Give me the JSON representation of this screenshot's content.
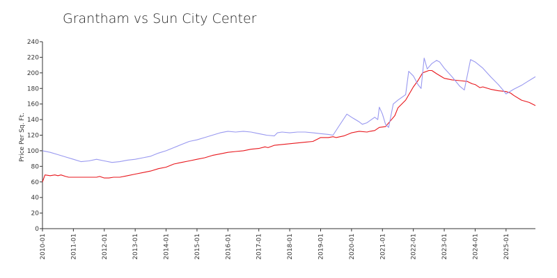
{
  "chart_data": {
    "type": "line",
    "title": "Grantham vs Sun City Center",
    "xlabel": "",
    "ylabel": "Price Per Sq. Ft.",
    "ylim": [
      0,
      240
    ],
    "yticks": [
      0,
      20,
      40,
      60,
      80,
      100,
      120,
      140,
      160,
      180,
      200,
      220,
      240
    ],
    "xlim": [
      2010.0,
      2025.95
    ],
    "xticks": [
      "2010-01",
      "2011-01",
      "2012-01",
      "2013-01",
      "2014-01",
      "2015-01",
      "2016-01",
      "2017-01",
      "2018-01",
      "2019-01",
      "2020-01",
      "2021-01",
      "2022-01",
      "2023-01",
      "2024-01",
      "2025-01"
    ],
    "grid": false,
    "legend": "none",
    "series": [
      {
        "name": "",
        "color": "#e8151b",
        "points": [
          [
            2010.0,
            60
          ],
          [
            2010.08,
            69
          ],
          [
            2010.25,
            68
          ],
          [
            2010.4,
            69
          ],
          [
            2010.5,
            68
          ],
          [
            2010.6,
            69
          ],
          [
            2010.75,
            67
          ],
          [
            2010.85,
            66
          ],
          [
            2011.0,
            66
          ],
          [
            2011.25,
            66
          ],
          [
            2011.5,
            66
          ],
          [
            2011.75,
            66
          ],
          [
            2011.85,
            67
          ],
          [
            2012.0,
            65
          ],
          [
            2012.15,
            65
          ],
          [
            2012.3,
            66
          ],
          [
            2012.5,
            66
          ],
          [
            2012.75,
            68
          ],
          [
            2013.0,
            70
          ],
          [
            2013.25,
            72
          ],
          [
            2013.5,
            74
          ],
          [
            2013.75,
            77
          ],
          [
            2014.0,
            79
          ],
          [
            2014.25,
            83
          ],
          [
            2014.5,
            85
          ],
          [
            2014.75,
            87
          ],
          [
            2015.0,
            89
          ],
          [
            2015.25,
            91
          ],
          [
            2015.5,
            94
          ],
          [
            2015.75,
            96
          ],
          [
            2016.0,
            98
          ],
          [
            2016.25,
            99
          ],
          [
            2016.5,
            100
          ],
          [
            2016.75,
            102
          ],
          [
            2017.0,
            103
          ],
          [
            2017.2,
            105
          ],
          [
            2017.3,
            104
          ],
          [
            2017.5,
            107
          ],
          [
            2017.75,
            108
          ],
          [
            2018.0,
            109
          ],
          [
            2018.25,
            110
          ],
          [
            2018.5,
            111
          ],
          [
            2018.75,
            112
          ],
          [
            2018.9,
            115
          ],
          [
            2019.0,
            117
          ],
          [
            2019.25,
            117
          ],
          [
            2019.4,
            118
          ],
          [
            2019.5,
            117
          ],
          [
            2019.75,
            119
          ],
          [
            2020.0,
            123
          ],
          [
            2020.25,
            125
          ],
          [
            2020.5,
            124
          ],
          [
            2020.6,
            125
          ],
          [
            2020.75,
            126
          ],
          [
            2020.9,
            130
          ],
          [
            2021.1,
            131
          ],
          [
            2021.25,
            138
          ],
          [
            2021.4,
            145
          ],
          [
            2021.5,
            155
          ],
          [
            2021.75,
            165
          ],
          [
            2022.0,
            182
          ],
          [
            2022.15,
            190
          ],
          [
            2022.3,
            200
          ],
          [
            2022.5,
            203
          ],
          [
            2022.6,
            203
          ],
          [
            2022.75,
            199
          ],
          [
            2023.0,
            193
          ],
          [
            2023.25,
            191
          ],
          [
            2023.5,
            190
          ],
          [
            2023.75,
            189
          ],
          [
            2023.9,
            186
          ],
          [
            2024.0,
            185
          ],
          [
            2024.15,
            181
          ],
          [
            2024.25,
            182
          ],
          [
            2024.5,
            179
          ],
          [
            2024.75,
            177
          ],
          [
            2025.0,
            176
          ],
          [
            2025.15,
            174
          ],
          [
            2025.25,
            171
          ],
          [
            2025.5,
            165
          ],
          [
            2025.75,
            162
          ],
          [
            2025.95,
            158
          ]
        ]
      },
      {
        "name": "",
        "color": "#9898f0",
        "points": [
          [
            2010.0,
            100
          ],
          [
            2010.25,
            98
          ],
          [
            2010.5,
            95
          ],
          [
            2010.75,
            92
          ],
          [
            2011.0,
            89
          ],
          [
            2011.25,
            86
          ],
          [
            2011.5,
            87
          ],
          [
            2011.75,
            89
          ],
          [
            2012.0,
            87
          ],
          [
            2012.25,
            85
          ],
          [
            2012.5,
            86
          ],
          [
            2012.75,
            88
          ],
          [
            2013.0,
            89
          ],
          [
            2013.25,
            91
          ],
          [
            2013.5,
            93
          ],
          [
            2013.75,
            97
          ],
          [
            2014.0,
            100
          ],
          [
            2014.25,
            104
          ],
          [
            2014.5,
            108
          ],
          [
            2014.75,
            112
          ],
          [
            2015.0,
            114
          ],
          [
            2015.25,
            117
          ],
          [
            2015.5,
            120
          ],
          [
            2015.75,
            123
          ],
          [
            2016.0,
            125
          ],
          [
            2016.25,
            124
          ],
          [
            2016.5,
            125
          ],
          [
            2016.75,
            124
          ],
          [
            2017.0,
            122
          ],
          [
            2017.25,
            120
          ],
          [
            2017.5,
            119
          ],
          [
            2017.6,
            123
          ],
          [
            2017.75,
            124
          ],
          [
            2018.0,
            123
          ],
          [
            2018.25,
            124
          ],
          [
            2018.5,
            124
          ],
          [
            2018.75,
            123
          ],
          [
            2019.0,
            122
          ],
          [
            2019.25,
            121
          ],
          [
            2019.4,
            120
          ],
          [
            2019.6,
            132
          ],
          [
            2019.85,
            147
          ],
          [
            2020.0,
            143
          ],
          [
            2020.25,
            137
          ],
          [
            2020.35,
            134
          ],
          [
            2020.5,
            136
          ],
          [
            2020.75,
            143
          ],
          [
            2020.85,
            140
          ],
          [
            2020.9,
            156
          ],
          [
            2021.0,
            147
          ],
          [
            2021.1,
            134
          ],
          [
            2021.2,
            130
          ],
          [
            2021.35,
            160
          ],
          [
            2021.5,
            165
          ],
          [
            2021.75,
            172
          ],
          [
            2021.85,
            202
          ],
          [
            2022.0,
            196
          ],
          [
            2022.15,
            185
          ],
          [
            2022.25,
            180
          ],
          [
            2022.35,
            219
          ],
          [
            2022.45,
            205
          ],
          [
            2022.6,
            212
          ],
          [
            2022.75,
            216
          ],
          [
            2022.85,
            214
          ],
          [
            2023.0,
            206
          ],
          [
            2023.25,
            195
          ],
          [
            2023.5,
            183
          ],
          [
            2023.65,
            178
          ],
          [
            2023.85,
            217
          ],
          [
            2024.0,
            214
          ],
          [
            2024.25,
            206
          ],
          [
            2024.5,
            195
          ],
          [
            2024.75,
            185
          ],
          [
            2024.9,
            178
          ],
          [
            2025.0,
            173
          ],
          [
            2025.25,
            179
          ],
          [
            2025.5,
            184
          ],
          [
            2025.7,
            189
          ],
          [
            2025.95,
            195
          ]
        ]
      }
    ]
  }
}
